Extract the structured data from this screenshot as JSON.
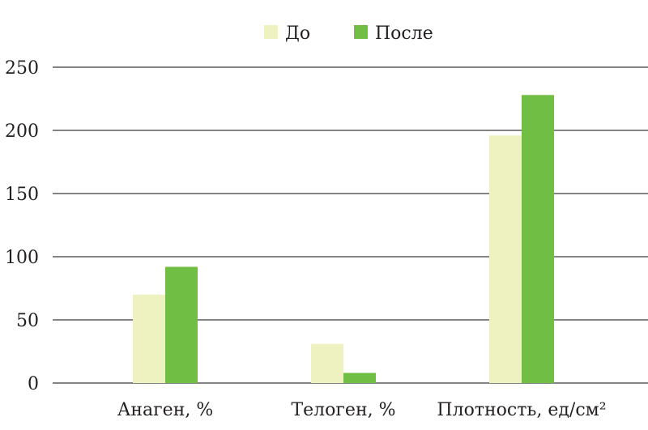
{
  "chart_data": {
    "type": "bar",
    "categories": [
      "Анаген, %",
      "Телоген, %",
      "Плотность, ед/см²"
    ],
    "series": [
      {
        "name": "До",
        "values": [
          70,
          31,
          196
        ],
        "color": "#eef2c0"
      },
      {
        "name": "После",
        "values": [
          92,
          8,
          228
        ],
        "color": "#70bf44"
      }
    ],
    "ylim": [
      0,
      250
    ],
    "yticks": [
      0,
      50,
      100,
      150,
      200,
      250
    ],
    "grid": true,
    "legend_position": "top-center",
    "title": "",
    "xlabel": "",
    "ylabel": ""
  }
}
